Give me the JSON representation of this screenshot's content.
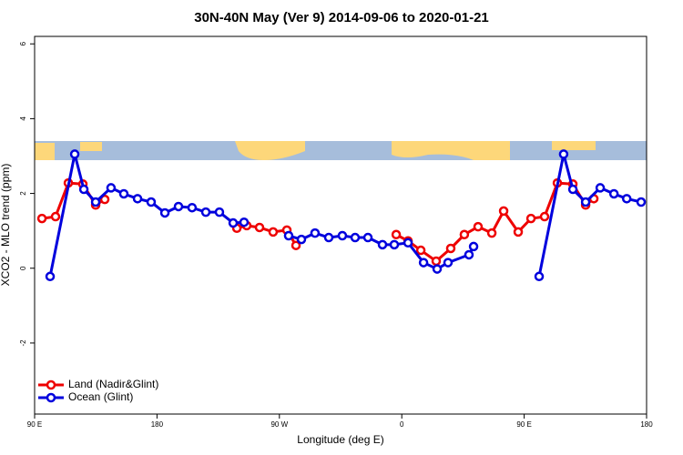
{
  "chart_data": {
    "type": "line",
    "title": "30N-40N May (Ver 9)   2014-09-06 to 2020-01-21",
    "x_label": "Longitude (deg E)",
    "y_label": "XCO2 - MLO trend (ppm)",
    "xlim": [
      90,
      540
    ],
    "ylim": [
      -3.9,
      6.2
    ],
    "xticks": [
      {
        "value": 90,
        "label": "90 E"
      },
      180,
      {
        "value": 270,
        "label": "90 W"
      },
      {
        "value": 360,
        "label": "0"
      },
      {
        "value": 450,
        "label": "90 E"
      },
      {
        "value": 540,
        "label": "180"
      }
    ],
    "yticks": [
      -2,
      0,
      2,
      4,
      6
    ],
    "legend": "bottom-left",
    "series": [
      {
        "name": "Land (Nadir&Glint)",
        "color": "#ee0000",
        "x": [
          95.4,
          105.4,
          114.8,
          125.5,
          134.9,
          141.6,
          null,
          238.7,
          246,
          255.4,
          265.4,
          275.5,
          282.2,
          null,
          355.9,
          364.6,
          374,
          385.3,
          396,
          406,
          416.1,
          426.2,
          434.9,
          445.6,
          455,
          465,
          474.4,
          485.8,
          495.2,
          501.2
        ],
        "values": [
          1.33,
          1.38,
          2.28,
          2.25,
          1.69,
          1.84,
          null,
          1.07,
          1.14,
          1.09,
          0.97,
          1.02,
          0.61,
          null,
          0.9,
          0.73,
          0.48,
          0.19,
          0.53,
          0.9,
          1.11,
          0.94,
          1.53,
          0.97,
          1.33,
          1.38,
          2.28,
          2.25,
          1.69,
          1.86
        ]
      },
      {
        "name": "Ocean (Glint)",
        "color": "#0000dd",
        "x": [
          101.4,
          119.5,
          126.2,
          134.9,
          146.2,
          155.6,
          165.7,
          175.7,
          185.8,
          195.8,
          205.8,
          215.9,
          225.9,
          236,
          244,
          null,
          276.8,
          286.2,
          296.2,
          306.3,
          316.3,
          325.7,
          335.1,
          345.8,
          354.5,
          364.6,
          376,
          386,
          394,
          409.4,
          412.8,
          null,
          461,
          479,
          485.8,
          495.2,
          505.9,
          516,
          525.4,
          536
        ],
        "values": [
          -0.22,
          3.05,
          2.11,
          1.77,
          2.15,
          1.99,
          1.86,
          1.77,
          1.48,
          1.65,
          1.62,
          1.5,
          1.5,
          1.21,
          1.23,
          null,
          0.87,
          0.77,
          0.94,
          0.82,
          0.87,
          0.82,
          0.82,
          0.63,
          0.63,
          0.68,
          0.15,
          -0.02,
          0.15,
          0.36,
          0.58,
          null,
          -0.22,
          3.05,
          2.11,
          1.77,
          2.15,
          1.99,
          1.86,
          1.77
        ]
      }
    ]
  }
}
